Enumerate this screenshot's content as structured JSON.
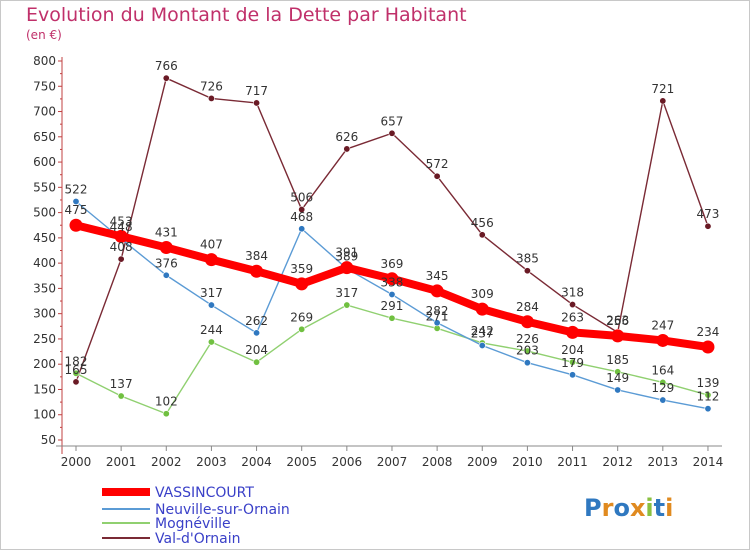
{
  "header": {
    "title": "Evolution du Montant de la Dette par Habitant",
    "subtitle": "(en €)"
  },
  "logo": {
    "text": "Proxiti",
    "colors": [
      "#2f78c0",
      "#e08a20",
      "#2f78c0",
      "#e08a20",
      "#8ac040",
      "#2f78c0",
      "#e08a20"
    ]
  },
  "chart_data": {
    "type": "line",
    "title": "Evolution du Montant de la Dette par Habitant",
    "subtitle": "(en €)",
    "xlabel": "",
    "ylabel": "",
    "ylim": [
      50,
      800
    ],
    "ytick_step": 50,
    "grid": false,
    "legend_position": "bottom-left",
    "x": [
      "2000",
      "2001",
      "2002",
      "2003",
      "2004",
      "2005",
      "2006",
      "2007",
      "2008",
      "2009",
      "2010",
      "2011",
      "2012",
      "2013",
      "2014"
    ],
    "series": [
      {
        "name": "VASSINCOURT",
        "color": "#ff0000",
        "marker": "#ff0000",
        "values": [
          475,
          453,
          431,
          407,
          384,
          359,
          391,
          369,
          345,
          309,
          284,
          263,
          256,
          247,
          234
        ]
      },
      {
        "name": "Neuville-sur-Ornain",
        "color": "#5b9bd5",
        "marker": "#2f78c0",
        "values": [
          522,
          448,
          376,
          317,
          262,
          468,
          389,
          338,
          282,
          237,
          203,
          179,
          149,
          129,
          112
        ]
      },
      {
        "name": "Mognéville",
        "color": "#90d070",
        "marker": "#70c040",
        "values": [
          182,
          137,
          102,
          244,
          204,
          269,
          317,
          291,
          271,
          242,
          226,
          204,
          185,
          164,
          139
        ]
      },
      {
        "name": "Val-d'Ornain",
        "color": "#7a2a35",
        "marker": "#6a1a25",
        "values": [
          165,
          408,
          766,
          726,
          717,
          506,
          626,
          657,
          572,
          456,
          385,
          318,
          263,
          721,
          473
        ]
      }
    ]
  }
}
